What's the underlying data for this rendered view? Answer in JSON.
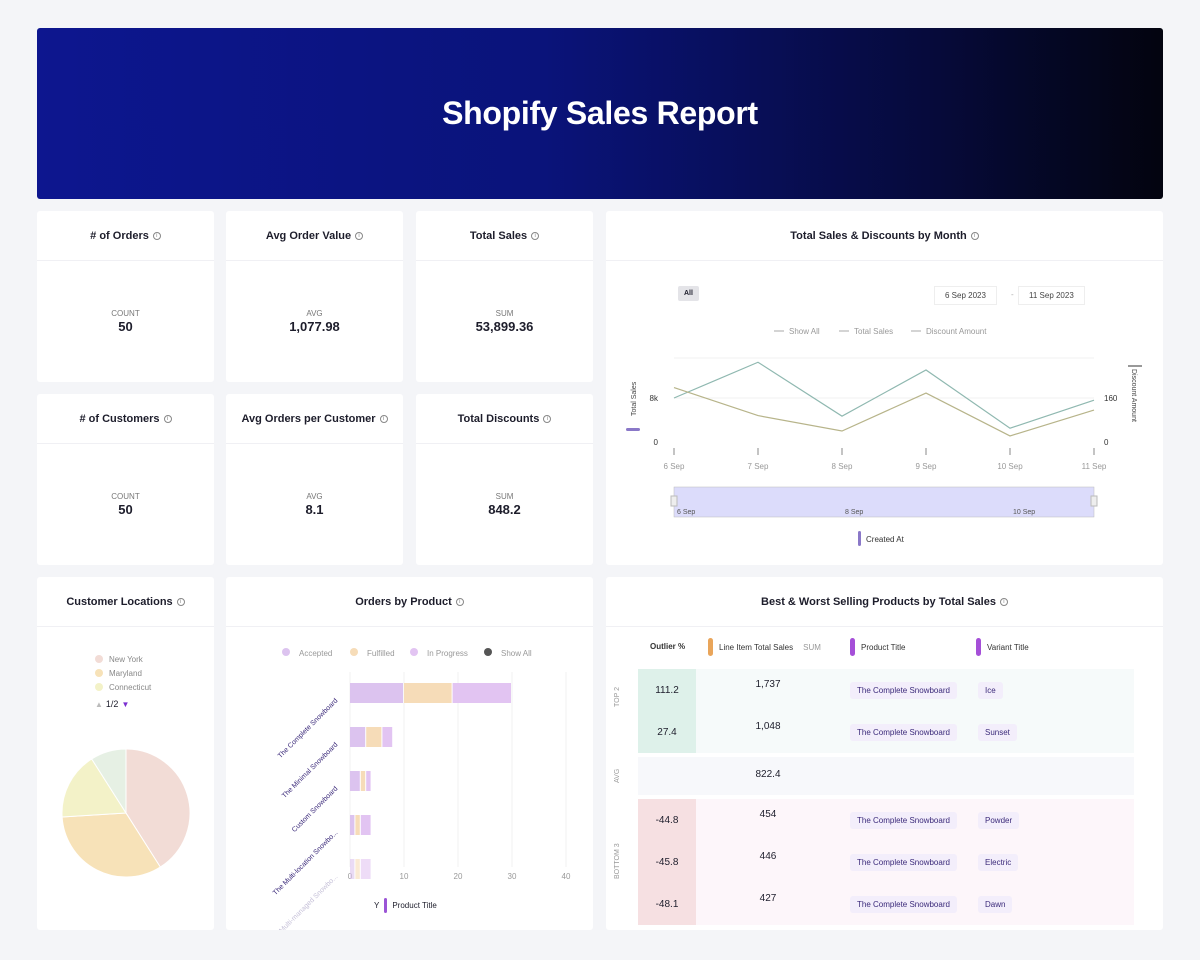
{
  "header": {
    "title": "Shopify Sales Report"
  },
  "kpis": [
    {
      "title": "# of Orders",
      "label": "COUNT",
      "value": "50"
    },
    {
      "title": "Avg Order Value",
      "label": "AVG",
      "value": "1,077.98"
    },
    {
      "title": "Total Sales",
      "label": "SUM",
      "value": "53,899.36"
    },
    {
      "title": "# of Customers",
      "label": "COUNT",
      "value": "50"
    },
    {
      "title": "Avg Orders per Customer",
      "label": "AVG",
      "value": "8.1"
    },
    {
      "title": "Total Discounts",
      "label": "SUM",
      "value": "848.2"
    }
  ],
  "chart_data": [
    {
      "type": "line",
      "title": "Total Sales & Discounts by Month",
      "filter_button": "All",
      "date_from": "6 Sep 2023",
      "date_to": "11 Sep 2023",
      "legend": [
        "Show All",
        "Total Sales",
        "Discount Amount"
      ],
      "x": [
        "6 Sep",
        "7 Sep",
        "8 Sep",
        "9 Sep",
        "10 Sep",
        "11 Sep"
      ],
      "ylabel": "Total Sales",
      "y2label": "Discount Amount",
      "yticks": [
        "0",
        "8k"
      ],
      "y2ticks": [
        "0",
        "160"
      ],
      "series": [
        {
          "name": "Total Sales",
          "axis": "left",
          "values": [
            8000,
            14500,
            4700,
            13100,
            2500,
            7600
          ],
          "color": "#8fb8b0"
        },
        {
          "name": "Discount Amount",
          "axis": "right",
          "values": [
            198,
            96,
            40,
            178,
            22,
            116
          ],
          "color": "#b7b48a"
        }
      ],
      "brush_labels": [
        "6 Sep",
        "8 Sep",
        "10 Sep"
      ],
      "x_field": "Created At"
    },
    {
      "type": "pie",
      "title": "Customer Locations",
      "legend": [
        "New York",
        "Maryland",
        "Connecticut"
      ],
      "legend_page": "1/2",
      "slices": [
        {
          "label": "New York",
          "value": 41,
          "color": "#f2dcd6"
        },
        {
          "label": "Maryland",
          "value": 33,
          "color": "#f7e2b8"
        },
        {
          "label": "Connecticut",
          "value": 17,
          "color": "#f3f2c8"
        },
        {
          "label": "",
          "value": 9,
          "color": "#e6f0e4"
        }
      ]
    },
    {
      "type": "bar",
      "orientation": "horizontal",
      "stacked": true,
      "title": "Orders by Product",
      "legend": [
        {
          "name": "Accepted",
          "color": "#dcc3ef"
        },
        {
          "name": "Fulfilled",
          "color": "#f6dcb8"
        },
        {
          "name": "In Progress",
          "color": "#e2c4f2"
        },
        {
          "name": "Show All",
          "color": "#555"
        }
      ],
      "categories": [
        "The Complete Snowboard",
        "The Minimal Snowboard",
        "Custom Snowboard",
        "The Multi-location Snowbo...",
        "The Multi-managed Snowbo..."
      ],
      "series": [
        {
          "name": "Accepted",
          "values": [
            10,
            3,
            2,
            1,
            1
          ]
        },
        {
          "name": "Fulfilled",
          "values": [
            9,
            3,
            1,
            1,
            1
          ]
        },
        {
          "name": "In Progress",
          "values": [
            11,
            2,
            1,
            2,
            2
          ]
        }
      ],
      "xticks": [
        0,
        10,
        20,
        30,
        40
      ],
      "xlim": [
        0,
        40
      ],
      "y_field_prefix": "Y",
      "y_field": "Product Title"
    }
  ],
  "table": {
    "title": "Best & Worst Selling Products by Total Sales",
    "headers": {
      "outlier": "Outlier %",
      "sales": "Line Item Total Sales",
      "agg": "SUM",
      "product": "Product Title",
      "variant": "Variant Title"
    },
    "groups": {
      "top": "TOP 2",
      "avg": "AVG",
      "bottom": "BOTTOM 3"
    },
    "top": [
      {
        "outlier": "111.2",
        "sales": "1,737",
        "product": "The Complete Snowboard",
        "variant": "Ice"
      },
      {
        "outlier": "27.4",
        "sales": "1,048",
        "product": "The Complete Snowboard",
        "variant": "Sunset"
      }
    ],
    "avg": "822.4",
    "bottom": [
      {
        "outlier": "-44.8",
        "sales": "454",
        "product": "The Complete Snowboard",
        "variant": "Powder"
      },
      {
        "outlier": "-45.8",
        "sales": "446",
        "product": "The Complete Snowboard",
        "variant": "Electric"
      },
      {
        "outlier": "-48.1",
        "sales": "427",
        "product": "The Complete Snowboard",
        "variant": "Dawn"
      }
    ]
  }
}
